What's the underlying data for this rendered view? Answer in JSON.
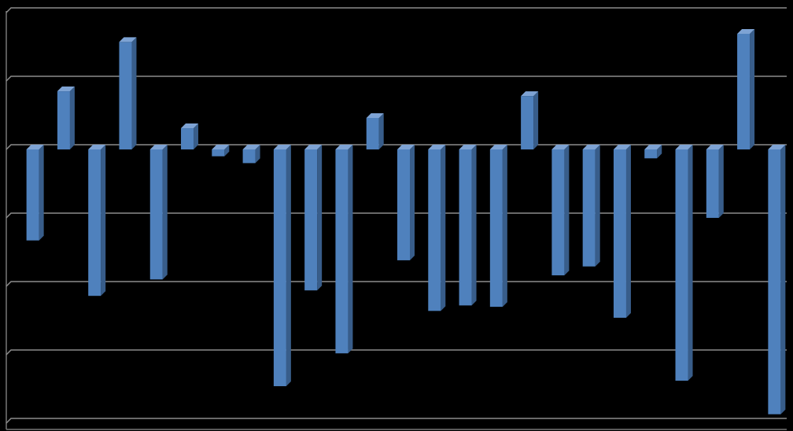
{
  "chart_data": {
    "type": "bar",
    "categories": [
      null,
      null,
      null,
      null,
      null,
      null,
      null,
      null,
      null,
      null,
      null,
      null,
      null,
      null,
      null,
      null,
      null,
      null,
      null,
      null,
      null,
      null,
      null,
      null,
      null
    ],
    "values": [
      -1.33,
      0.85,
      -2.14,
      1.57,
      -1.9,
      0.31,
      -0.1,
      -0.2,
      -3.46,
      -2.06,
      -2.98,
      0.46,
      -1.62,
      -2.36,
      -2.28,
      -2.3,
      0.78,
      -1.84,
      -1.71,
      -2.46,
      -0.13,
      -3.38,
      -1.0,
      1.69,
      -3.87
    ],
    "color": "#4f81bd",
    "ylim": [
      -4,
      2
    ],
    "yticks": [
      -4,
      -3,
      -2,
      -1,
      0,
      1,
      2
    ],
    "grid": true
  }
}
